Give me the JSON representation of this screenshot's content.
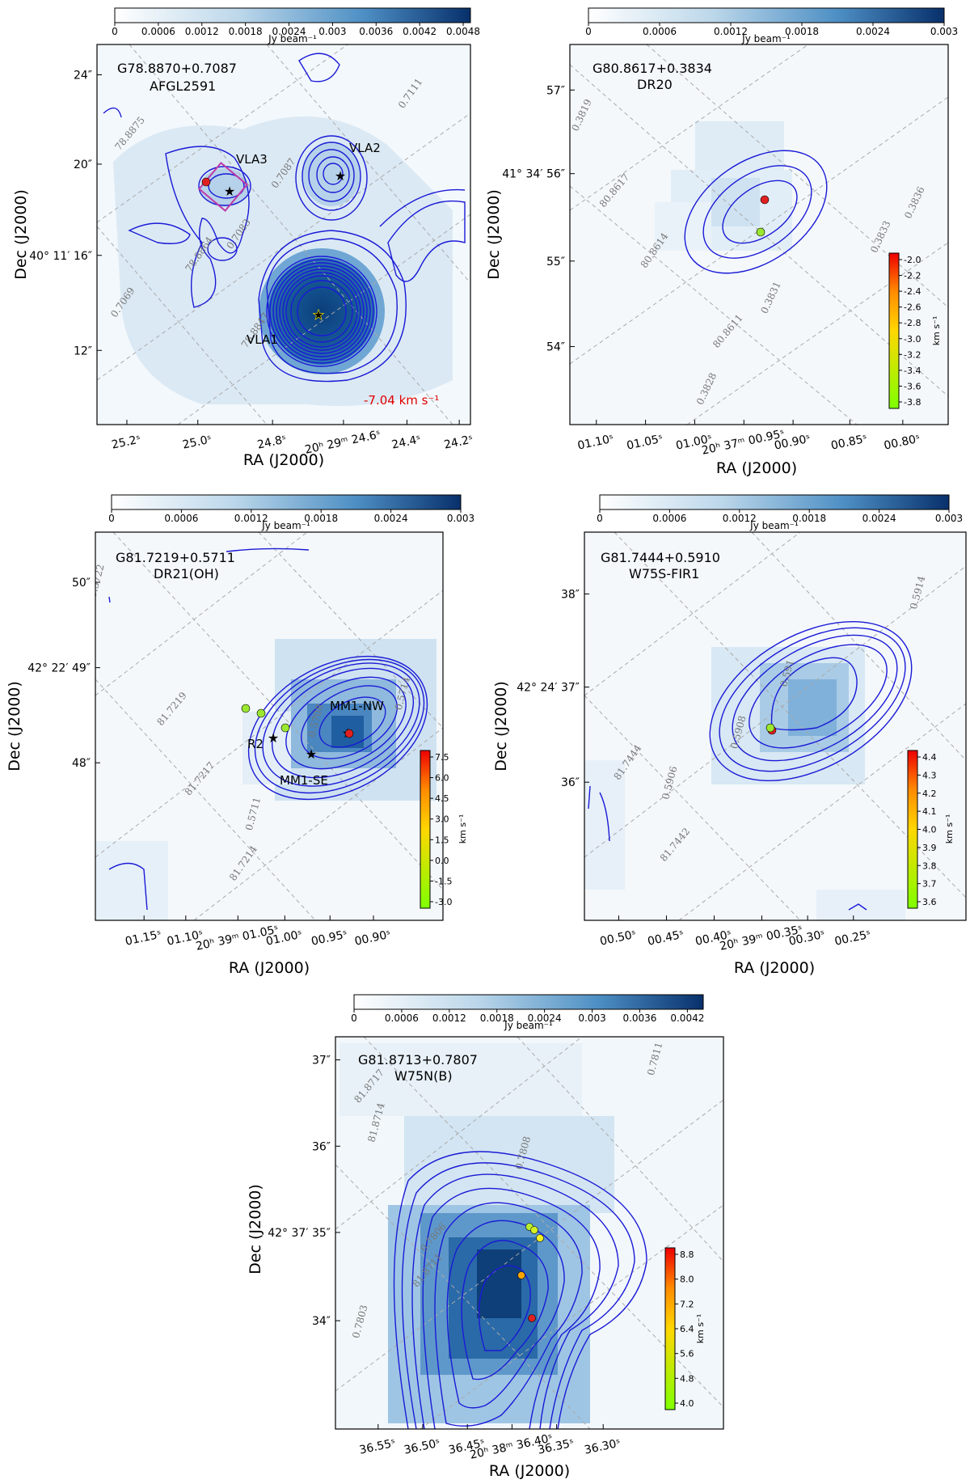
{
  "figure": {
    "colorbar_label": "Jy beam⁻¹",
    "vel_unit": "km s⁻¹",
    "xlabel": "RA (J2000)",
    "ylabel": "Dec (J2000)",
    "panels": [
      {
        "id": "afgl2591",
        "name": "G78.8870+0.7087",
        "alias": "AFGL2591",
        "colorbar_ticks": [
          "0",
          "0.0006",
          "0.0012",
          "0.0018",
          "0.0024",
          "0.003",
          "0.0036",
          "0.0042",
          "0.0048"
        ],
        "x_ticks": [
          "25.2ˢ",
          "25.0ˢ",
          "24.8ˢ",
          "20ʰ 29ᵐ 24.6ˢ",
          "24.4ˢ",
          "24.2ˢ"
        ],
        "y_ticks": [
          "24″",
          "20″",
          "40° 11′ 16″",
          "12″"
        ],
        "grid_labels": [
          "78.8875",
          "0.7111",
          "0.7087",
          "78.8864",
          "0.7083",
          "0.7069",
          "78.8847"
        ],
        "annotations": [
          "VLA3",
          "VLA2",
          "VLA1"
        ],
        "velocity_label": "-7.04 km s⁻¹",
        "vel_colorbar": null
      },
      {
        "id": "dr20",
        "name": "G80.8617+0.3834",
        "alias": "DR20",
        "colorbar_ticks": [
          "0",
          "0.0006",
          "0.0012",
          "0.0018",
          "0.0024",
          "0.003"
        ],
        "x_ticks": [
          "01.10ˢ",
          "01.05ˢ",
          "01.00ˢ",
          "20ʰ 37ᵐ 00.95ˢ",
          "00.90ˢ",
          "00.85ˢ",
          "00.80ˢ"
        ],
        "y_ticks": [
          "57″",
          "41° 34′ 56″",
          "55″",
          "54″"
        ],
        "grid_labels": [
          "0.3819",
          "80.8617",
          "0.3836",
          "80.8614",
          "0.3833",
          "0.3831",
          "80.8611",
          "0.3828"
        ],
        "annotations": [],
        "velocity_label": "",
        "vel_colorbar": {
          "ticks": [
            "-2.0",
            "-2.2",
            "-2.4",
            "-2.6",
            "-2.8",
            "-3.0",
            "-3.2",
            "-3.4",
            "-3.6",
            "-3.8"
          ]
        }
      },
      {
        "id": "dr21oh",
        "name": "G81.7219+0.5711",
        "alias": "DR21(OH)",
        "colorbar_ticks": [
          "0",
          "0.0006",
          "0.0012",
          "0.0018",
          "0.0024",
          "0.003"
        ],
        "x_ticks": [
          "01.15ˢ",
          "01.10ˢ",
          "20ʰ 39ᵐ 01.05ˢ",
          "01.00ˢ",
          "00.95ˢ",
          "00.90ˢ"
        ],
        "y_ticks": [
          "50″",
          "42° 22′ 49″",
          "48″"
        ],
        "grid_labels": [
          "0.5722",
          "81.7219",
          "0.5714",
          "81.7217",
          "0.5708",
          "81.7214",
          "0.5711"
        ],
        "annotations": [
          "MM1-NW",
          "R2",
          "MM1-SE"
        ],
        "velocity_label": "",
        "vel_colorbar": {
          "ticks": [
            "7.5",
            "6.0",
            "4.5",
            "3.0",
            "1.5",
            "0.0",
            "-1.5",
            "-3.0"
          ]
        }
      },
      {
        "id": "w75sfir1",
        "name": "G81.7444+0.5910",
        "alias": "W75S-FIR1",
        "colorbar_ticks": [
          "0",
          "0.0006",
          "0.0012",
          "0.0018",
          "0.0024",
          "0.003"
        ],
        "x_ticks": [
          "00.50ˢ",
          "00.45ˢ",
          "00.40ˢ",
          "20ʰ 39ᵐ 00.35ˢ",
          "00.30ˢ",
          "00.25ˢ"
        ],
        "y_ticks": [
          "38″",
          "42° 24′ 37″",
          "36″"
        ],
        "grid_labels": [
          "0.5914",
          "0.591",
          "0.5908",
          "81.7444",
          "0.5906",
          "81.7442"
        ],
        "annotations": [],
        "velocity_label": "",
        "vel_colorbar": {
          "ticks": [
            "4.4",
            "4.3",
            "4.2",
            "4.1",
            "4.0",
            "3.9",
            "3.8",
            "3.7",
            "3.6"
          ]
        }
      },
      {
        "id": "w75nb",
        "name": "G81.8713+0.7807",
        "alias": "W75N(B)",
        "colorbar_ticks": [
          "0",
          "0.0006",
          "0.0012",
          "0.0018",
          "0.0024",
          "0.003",
          "0.0036",
          "0.0042"
        ],
        "x_ticks": [
          "36.55ˢ",
          "36.50ˢ",
          "36.45ˢ",
          "20ʰ 38ᵐ 36.40ˢ",
          "36.35ˢ",
          "36.30ˢ"
        ],
        "y_ticks": [
          "37″",
          "36″",
          "42° 37′ 35″",
          "34″"
        ],
        "grid_labels": [
          "81.8717",
          "0.7811",
          "81.8714",
          "0.7808",
          "0.7806",
          "81.8711",
          "0.7803"
        ],
        "annotations": [],
        "velocity_label": "",
        "vel_colorbar": {
          "ticks": [
            "8.8",
            "8.0",
            "7.2",
            "6.4",
            "5.6",
            "4.8",
            "4.0"
          ]
        }
      }
    ]
  }
}
